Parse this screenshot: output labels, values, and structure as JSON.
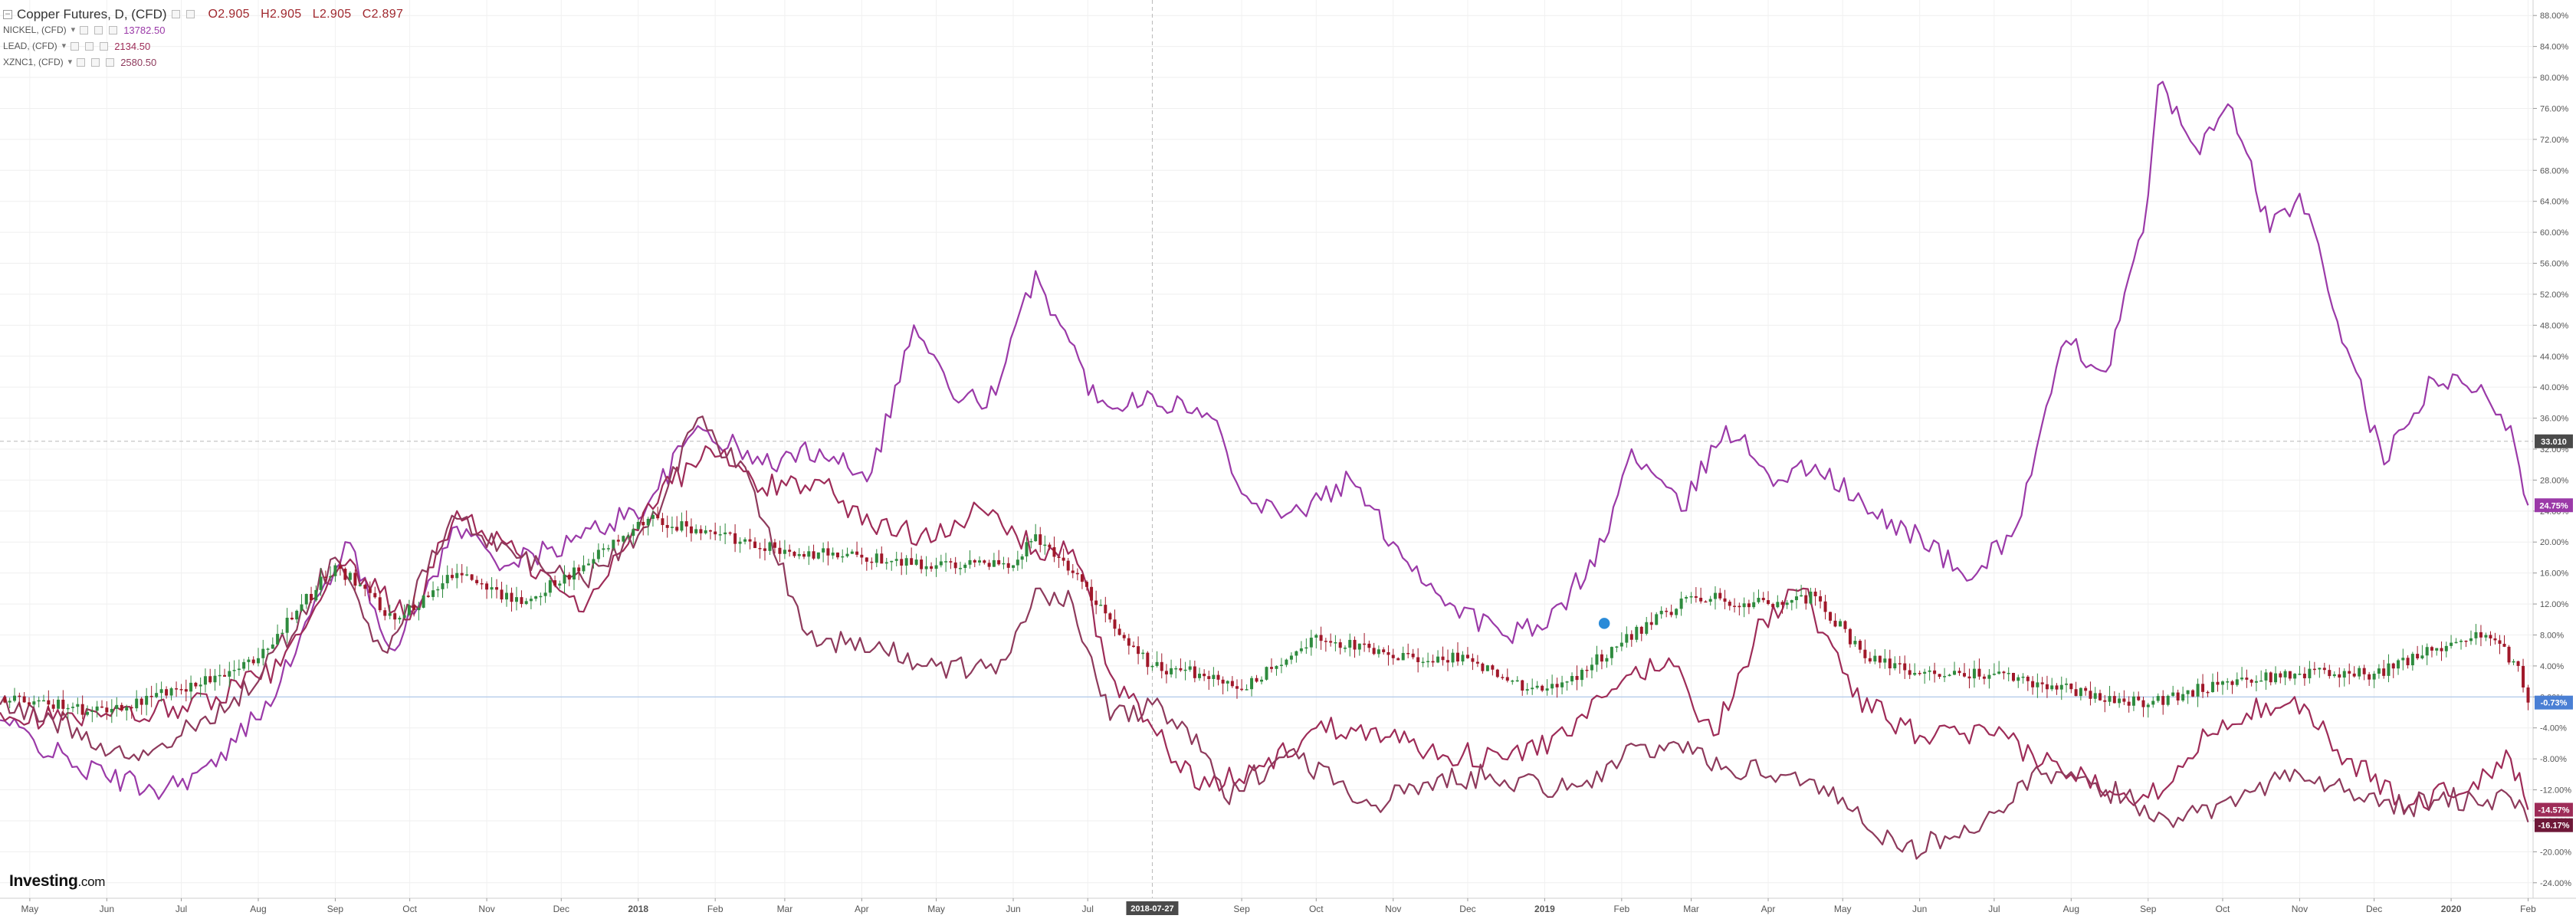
{
  "header": {
    "title": "Copper Futures, D, (CFD)",
    "ohlc": [
      {
        "key": "O",
        "value": "2.905"
      },
      {
        "key": "H",
        "value": "2.905"
      },
      {
        "key": "L",
        "value": "2.905"
      },
      {
        "key": "C",
        "value": "2.897"
      }
    ]
  },
  "legend": [
    {
      "symbol": "NICKEL, (CFD)",
      "value": "13782.50",
      "color": "#9b3aa8"
    },
    {
      "symbol": "LEAD, (CFD)",
      "value": "2134.50",
      "color": "#9e2c58"
    },
    {
      "symbol": "XZNC1, (CFD)",
      "value": "2580.50",
      "color": "#8e3a5c"
    }
  ],
  "logo": {
    "text": "Investing",
    "suffix": ".com"
  },
  "crosshair": {
    "x_date": "2018-07-27",
    "y_value": "33.010"
  },
  "chart_data": {
    "type": "line",
    "title": "Copper Futures, D, (CFD)",
    "y_unit": "% change",
    "ylim": [
      -26,
      90
    ],
    "x_range": [
      "2017-04-19",
      "2020-02-03"
    ],
    "yticks": [
      -24,
      -20,
      -16,
      -12,
      -8,
      -4,
      0,
      4,
      8,
      12,
      16,
      20,
      24,
      28,
      32,
      36,
      40,
      44,
      48,
      52,
      56,
      60,
      64,
      68,
      72,
      76,
      80,
      84,
      88
    ],
    "x_ticks": [
      {
        "date": "2017-05-01",
        "label": "May"
      },
      {
        "date": "2017-06-01",
        "label": "Jun"
      },
      {
        "date": "2017-07-01",
        "label": "Jul"
      },
      {
        "date": "2017-08-01",
        "label": "Aug"
      },
      {
        "date": "2017-09-01",
        "label": "Sep"
      },
      {
        "date": "2017-10-01",
        "label": "Oct"
      },
      {
        "date": "2017-11-01",
        "label": "Nov"
      },
      {
        "date": "2017-12-01",
        "label": "Dec"
      },
      {
        "date": "2018-01-01",
        "label": "2018"
      },
      {
        "date": "2018-02-01",
        "label": "Feb"
      },
      {
        "date": "2018-03-01",
        "label": "Mar"
      },
      {
        "date": "2018-04-01",
        "label": "Apr"
      },
      {
        "date": "2018-05-01",
        "label": "May"
      },
      {
        "date": "2018-06-01",
        "label": "Jun"
      },
      {
        "date": "2018-07-01",
        "label": "Jul"
      },
      {
        "date": "2018-09-01",
        "label": "Sep"
      },
      {
        "date": "2018-10-01",
        "label": "Oct"
      },
      {
        "date": "2018-11-01",
        "label": "Nov"
      },
      {
        "date": "2018-12-01",
        "label": "Dec"
      },
      {
        "date": "2019-01-01",
        "label": "2019"
      },
      {
        "date": "2019-02-01",
        "label": "Feb"
      },
      {
        "date": "2019-03-01",
        "label": "Mar"
      },
      {
        "date": "2019-04-01",
        "label": "Apr"
      },
      {
        "date": "2019-05-01",
        "label": "May"
      },
      {
        "date": "2019-06-01",
        "label": "Jun"
      },
      {
        "date": "2019-07-01",
        "label": "Jul"
      },
      {
        "date": "2019-08-01",
        "label": "Aug"
      },
      {
        "date": "2019-09-01",
        "label": "Sep"
      },
      {
        "date": "2019-10-01",
        "label": "Oct"
      },
      {
        "date": "2019-11-01",
        "label": "Nov"
      },
      {
        "date": "2019-12-01",
        "label": "Dec"
      },
      {
        "date": "2020-01-01",
        "label": "2020"
      },
      {
        "date": "2020-02-01",
        "label": "Feb"
      }
    ],
    "series": [
      {
        "name": "NICKEL, (CFD)",
        "color": "#9b3aa8",
        "last_label": "24.75%",
        "points": [
          [
            "2017-04-19",
            -3
          ],
          [
            "2017-05-20",
            -9
          ],
          [
            "2017-06-20",
            -12
          ],
          [
            "2017-07-15",
            -9
          ],
          [
            "2017-08-10",
            2
          ],
          [
            "2017-09-05",
            20
          ],
          [
            "2017-09-25",
            6
          ],
          [
            "2017-10-20",
            22
          ],
          [
            "2017-11-10",
            17
          ],
          [
            "2017-12-05",
            20
          ],
          [
            "2018-01-05",
            25
          ],
          [
            "2018-01-25",
            35
          ],
          [
            "2018-02-20",
            30
          ],
          [
            "2018-03-15",
            32
          ],
          [
            "2018-04-05",
            29
          ],
          [
            "2018-04-22",
            48
          ],
          [
            "2018-05-10",
            38
          ],
          [
            "2018-05-25",
            39
          ],
          [
            "2018-06-10",
            55
          ],
          [
            "2018-06-20",
            48
          ],
          [
            "2018-07-05",
            38
          ],
          [
            "2018-07-27",
            39
          ],
          [
            "2018-08-20",
            36
          ],
          [
            "2018-09-05",
            25
          ],
          [
            "2018-09-25",
            24
          ],
          [
            "2018-10-15",
            28
          ],
          [
            "2018-11-01",
            20
          ],
          [
            "2018-11-20",
            13
          ],
          [
            "2018-12-15",
            8
          ],
          [
            "2019-01-02",
            9
          ],
          [
            "2019-01-25",
            20
          ],
          [
            "2019-02-05",
            32
          ],
          [
            "2019-02-25",
            24
          ],
          [
            "2019-03-15",
            35
          ],
          [
            "2019-04-05",
            28
          ],
          [
            "2019-04-20",
            30
          ],
          [
            "2019-05-15",
            23
          ],
          [
            "2019-06-01",
            21
          ],
          [
            "2019-06-20",
            15
          ],
          [
            "2019-07-10",
            22
          ],
          [
            "2019-07-30",
            46
          ],
          [
            "2019-08-15",
            42
          ],
          [
            "2019-08-30",
            60
          ],
          [
            "2019-09-05",
            79
          ],
          [
            "2019-09-20",
            71
          ],
          [
            "2019-10-05",
            76
          ],
          [
            "2019-10-20",
            60
          ],
          [
            "2019-11-01",
            65
          ],
          [
            "2019-11-20",
            45
          ],
          [
            "2019-12-05",
            30
          ],
          [
            "2019-12-25",
            41
          ],
          [
            "2020-01-15",
            39
          ],
          [
            "2020-01-25",
            35
          ],
          [
            "2020-02-01",
            24.75
          ]
        ]
      },
      {
        "name": "LEAD, (CFD)",
        "color": "#9e2c58",
        "last_label": "-14.57%",
        "points": [
          [
            "2017-04-19",
            -2
          ],
          [
            "2017-05-20",
            -3
          ],
          [
            "2017-06-20",
            -2
          ],
          [
            "2017-07-15",
            0
          ],
          [
            "2017-08-10",
            4
          ],
          [
            "2017-09-05",
            17
          ],
          [
            "2017-10-01",
            10
          ],
          [
            "2017-10-20",
            24
          ],
          [
            "2017-11-15",
            18
          ],
          [
            "2017-12-10",
            11
          ],
          [
            "2018-01-05",
            25
          ],
          [
            "2018-01-30",
            32
          ],
          [
            "2018-02-20",
            27
          ],
          [
            "2018-03-15",
            28
          ],
          [
            "2018-04-05",
            22
          ],
          [
            "2018-04-25",
            21
          ],
          [
            "2018-05-20",
            24
          ],
          [
            "2018-06-10",
            19
          ],
          [
            "2018-06-25",
            19
          ],
          [
            "2018-07-10",
            3
          ],
          [
            "2018-07-27",
            -4
          ],
          [
            "2018-08-15",
            -12
          ],
          [
            "2018-09-10",
            -9
          ],
          [
            "2018-10-01",
            -4
          ],
          [
            "2018-10-25",
            -4
          ],
          [
            "2018-11-15",
            -7
          ],
          [
            "2018-12-15",
            -8
          ],
          [
            "2019-01-10",
            -5
          ],
          [
            "2019-02-01",
            2
          ],
          [
            "2019-02-20",
            5
          ],
          [
            "2019-03-10",
            -5
          ],
          [
            "2019-03-30",
            10
          ],
          [
            "2019-04-15",
            14
          ],
          [
            "2019-05-05",
            0
          ],
          [
            "2019-06-01",
            -5
          ],
          [
            "2019-07-01",
            -5
          ],
          [
            "2019-08-01",
            -10
          ],
          [
            "2019-09-01",
            -13
          ],
          [
            "2019-10-01",
            -3
          ],
          [
            "2019-10-30",
            0
          ],
          [
            "2019-11-20",
            -8
          ],
          [
            "2019-12-15",
            -14
          ],
          [
            "2020-01-10",
            -11
          ],
          [
            "2020-01-25",
            -8
          ],
          [
            "2020-02-01",
            -14.57
          ]
        ]
      },
      {
        "name": "XZNC1, (CFD)",
        "color": "#8e3a5c",
        "last_label": "-16.17%",
        "points": [
          [
            "2017-04-19",
            -1
          ],
          [
            "2017-05-20",
            -4
          ],
          [
            "2017-06-10",
            -8
          ],
          [
            "2017-07-01",
            -5
          ],
          [
            "2017-08-01",
            2
          ],
          [
            "2017-09-01",
            18
          ],
          [
            "2017-09-20",
            6
          ],
          [
            "2017-10-20",
            23
          ],
          [
            "2017-11-15",
            18
          ],
          [
            "2017-12-10",
            15
          ],
          [
            "2018-01-05",
            22
          ],
          [
            "2018-01-25",
            36
          ],
          [
            "2018-02-15",
            28
          ],
          [
            "2018-03-10",
            8
          ],
          [
            "2018-04-10",
            6
          ],
          [
            "2018-05-01",
            4
          ],
          [
            "2018-05-25",
            3
          ],
          [
            "2018-06-10",
            14
          ],
          [
            "2018-06-25",
            12
          ],
          [
            "2018-07-10",
            -3
          ],
          [
            "2018-07-27",
            -1
          ],
          [
            "2018-08-10",
            -4
          ],
          [
            "2018-08-25",
            -13
          ],
          [
            "2018-09-20",
            -7
          ],
          [
            "2018-10-10",
            -11
          ],
          [
            "2018-10-25",
            -14
          ],
          [
            "2018-11-15",
            -11
          ],
          [
            "2018-12-10",
            -10
          ],
          [
            "2019-01-10",
            -12
          ],
          [
            "2019-02-01",
            -8
          ],
          [
            "2019-02-20",
            -6
          ],
          [
            "2019-03-15",
            -9
          ],
          [
            "2019-04-10",
            -10
          ],
          [
            "2019-05-01",
            -13
          ],
          [
            "2019-05-25",
            -20
          ],
          [
            "2019-06-15",
            -18
          ],
          [
            "2019-07-01",
            -15
          ],
          [
            "2019-07-20",
            -10
          ],
          [
            "2019-08-15",
            -12
          ],
          [
            "2019-09-15",
            -16
          ],
          [
            "2019-10-10",
            -12
          ],
          [
            "2019-11-01",
            -10
          ],
          [
            "2019-11-25",
            -13
          ],
          [
            "2019-12-15",
            -14
          ],
          [
            "2020-01-10",
            -13
          ],
          [
            "2020-01-25",
            -13
          ],
          [
            "2020-02-01",
            -16.17
          ]
        ]
      }
    ],
    "copper": {
      "name": "Copper Futures, D, (CFD)",
      "last_label": "-0.73%",
      "up_color": "#2e8b3e",
      "down_color": "#a0182a",
      "points": [
        [
          "2017-04-19",
          0
        ],
        [
          "2017-06-01",
          -2
        ],
        [
          "2017-07-01",
          1
        ],
        [
          "2017-08-01",
          5
        ],
        [
          "2017-09-01",
          17
        ],
        [
          "2017-09-25",
          10
        ],
        [
          "2017-10-20",
          16
        ],
        [
          "2017-11-15",
          12
        ],
        [
          "2017-12-10",
          17
        ],
        [
          "2018-01-05",
          23
        ],
        [
          "2018-02-01",
          21
        ],
        [
          "2018-03-01",
          19
        ],
        [
          "2018-04-01",
          18
        ],
        [
          "2018-05-01",
          17
        ],
        [
          "2018-06-01",
          17
        ],
        [
          "2018-06-10",
          21
        ],
        [
          "2018-06-25",
          16
        ],
        [
          "2018-07-10",
          10
        ],
        [
          "2018-07-27",
          4
        ],
        [
          "2018-08-15",
          3
        ],
        [
          "2018-09-01",
          1
        ],
        [
          "2018-09-15",
          4
        ],
        [
          "2018-10-01",
          8
        ],
        [
          "2018-11-01",
          5
        ],
        [
          "2018-12-01",
          5
        ],
        [
          "2018-12-25",
          1
        ],
        [
          "2019-01-10",
          2
        ],
        [
          "2019-02-01",
          7
        ],
        [
          "2019-03-01",
          13
        ],
        [
          "2019-04-01",
          12
        ],
        [
          "2019-04-20",
          13
        ],
        [
          "2019-05-10",
          5
        ],
        [
          "2019-06-01",
          3
        ],
        [
          "2019-07-01",
          3
        ],
        [
          "2019-08-01",
          1
        ],
        [
          "2019-09-01",
          -1
        ],
        [
          "2019-10-01",
          2
        ],
        [
          "2019-11-01",
          3
        ],
        [
          "2019-12-01",
          3
        ],
        [
          "2020-01-01",
          7
        ],
        [
          "2020-01-15",
          8
        ],
        [
          "2020-01-28",
          4
        ],
        [
          "2020-02-01",
          -0.73
        ]
      ]
    }
  }
}
